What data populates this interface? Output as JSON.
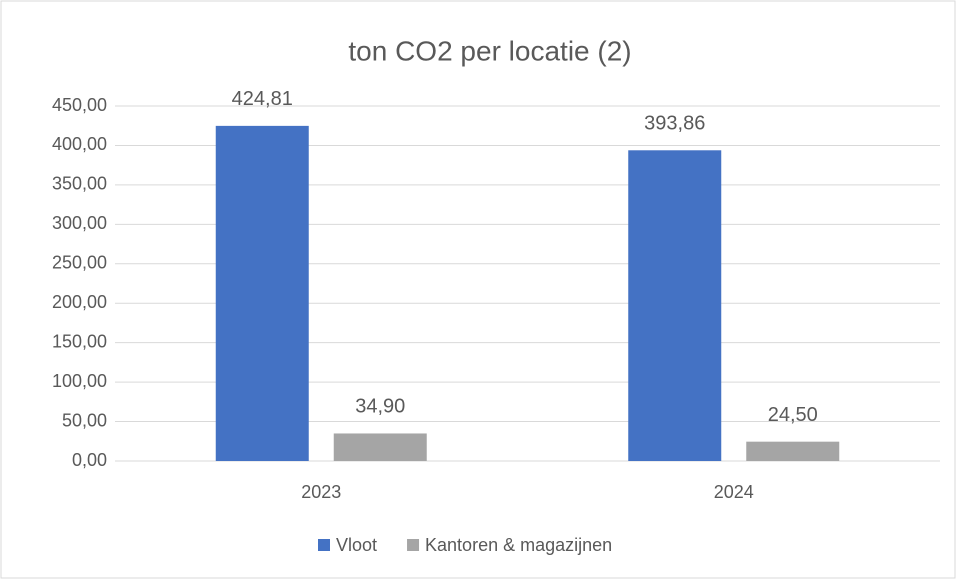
{
  "chart_data": {
    "type": "bar",
    "title": "ton CO2 per locatie (2)",
    "categories": [
      "2023",
      "2024"
    ],
    "series": [
      {
        "name": "Vloot",
        "color": "#4472c4",
        "values": [
          424.81,
          393.86
        ],
        "value_labels": [
          "424,81",
          "393,86"
        ]
      },
      {
        "name": "Kantoren & magazijnen",
        "color": "#a5a5a5",
        "values": [
          34.9,
          24.5
        ],
        "value_labels": [
          "34,90",
          "24,50"
        ]
      }
    ],
    "ylim": [
      0,
      450
    ],
    "yticks": [
      {
        "value": 0,
        "label": "0,00"
      },
      {
        "value": 50,
        "label": "50,00"
      },
      {
        "value": 100,
        "label": "100,00"
      },
      {
        "value": 150,
        "label": "150,00"
      },
      {
        "value": 200,
        "label": "200,00"
      },
      {
        "value": 250,
        "label": "250,00"
      },
      {
        "value": 300,
        "label": "300,00"
      },
      {
        "value": 350,
        "label": "350,00"
      },
      {
        "value": 400,
        "label": "400,00"
      },
      {
        "value": 450,
        "label": "450,00"
      }
    ],
    "grid": true,
    "legend": "bottom"
  }
}
